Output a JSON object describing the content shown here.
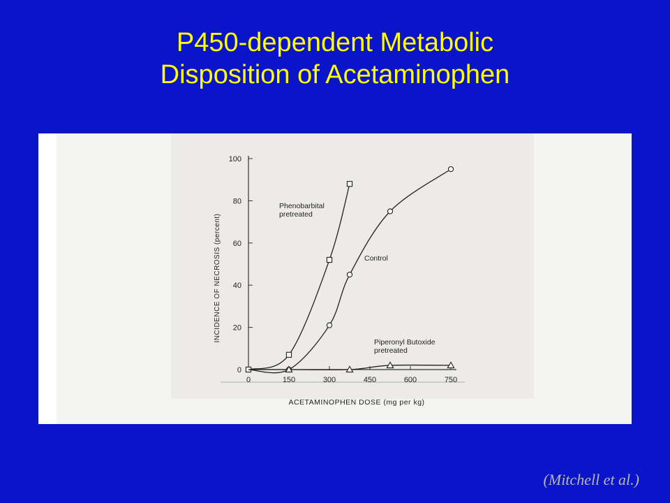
{
  "slide": {
    "title_line1": "P450-dependent Metabolic",
    "title_line2": "Disposition of Acetaminophen",
    "citation": "(Mitchell et al.)",
    "background_color": "#0a14c8",
    "title_color": "#ffff00"
  },
  "chart_data": {
    "type": "line",
    "title": "",
    "xlabel": "ACETAMINOPHEN DOSE (mg per kg)",
    "ylabel": "INCIDENCE OF NECROSIS (percent)",
    "xlim": [
      0,
      750
    ],
    "ylim": [
      0,
      100
    ],
    "x_ticks": [
      "0",
      "150",
      "300",
      "450",
      "600",
      "750"
    ],
    "y_ticks": [
      "0",
      "20",
      "40",
      "60",
      "80",
      "100"
    ],
    "grid": false,
    "series": [
      {
        "name": "Phenobarbital pretreated",
        "label_lines": [
          "Phenobarbital",
          "pretreated"
        ],
        "marker": "square",
        "x": [
          0,
          150,
          300,
          375
        ],
        "y": [
          0,
          7,
          52,
          88
        ]
      },
      {
        "name": "Control",
        "label_lines": [
          "Control"
        ],
        "marker": "circle",
        "x": [
          0,
          150,
          300,
          375,
          525,
          750
        ],
        "y": [
          0,
          0,
          21,
          45,
          75,
          95
        ]
      },
      {
        "name": "Piperonyl Butoxide pretreated",
        "label_lines": [
          "Piperonyl Butoxide",
          "pretreated"
        ],
        "marker": "triangle",
        "x": [
          0,
          150,
          375,
          525,
          750
        ],
        "y": [
          0,
          0,
          0,
          2,
          2
        ]
      }
    ]
  }
}
